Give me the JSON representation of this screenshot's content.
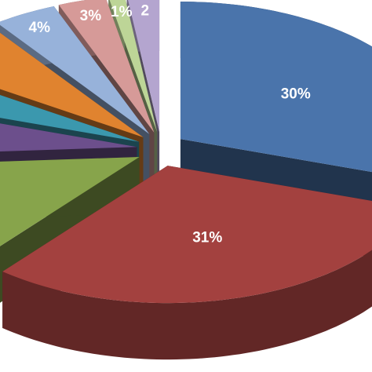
{
  "chart_data": {
    "type": "pie",
    "three_d": true,
    "exploded": true,
    "start_angle": -90,
    "values": [
      30,
      31,
      13,
      6,
      4,
      6,
      4,
      3,
      1,
      2
    ],
    "value_labels": [
      "30%",
      "31%",
      null,
      null,
      null,
      null,
      "4%",
      "3%",
      "1%",
      "2"
    ],
    "colors": [
      "#4a74ab",
      "#a3413f",
      "#87a44b",
      "#6c4f8c",
      "#3b98ae",
      "#e0832f",
      "#97b2da",
      "#d69a98",
      "#bdd597",
      "#b4a5cf"
    ]
  }
}
